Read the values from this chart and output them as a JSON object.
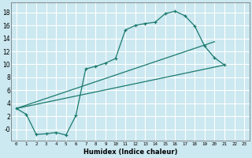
{
  "xlabel": "Humidex (Indice chaleur)",
  "bg_color": "#cce8f0",
  "grid_color": "#ffffff",
  "line_color": "#1a7a6e",
  "xlim": [
    -0.5,
    23.5
  ],
  "ylim": [
    -1.8,
    19.5
  ],
  "xticks": [
    0,
    1,
    2,
    3,
    4,
    5,
    6,
    7,
    8,
    9,
    10,
    11,
    12,
    13,
    14,
    15,
    16,
    17,
    18,
    19,
    20,
    21,
    22,
    23
  ],
  "yticks": [
    0,
    2,
    4,
    6,
    8,
    10,
    12,
    14,
    16,
    18
  ],
  "ytick_labels": [
    "-0",
    "2",
    "4",
    "6",
    "8",
    "10",
    "12",
    "14",
    "16",
    "18"
  ],
  "curve1_x": [
    0,
    1,
    2,
    3,
    4,
    5,
    6,
    7,
    8,
    9,
    10,
    11,
    12,
    13,
    14,
    15,
    16,
    17,
    18,
    19,
    20,
    21
  ],
  "curve1_y": [
    3.2,
    2.3,
    -0.8,
    -0.7,
    -0.5,
    -0.9,
    2.1,
    9.3,
    9.7,
    10.2,
    10.9,
    15.3,
    16.0,
    16.3,
    16.5,
    17.8,
    18.2,
    17.5,
    15.9,
    12.8,
    11.0,
    9.9
  ],
  "line2_x": [
    0,
    21
  ],
  "line2_y": [
    3.2,
    9.9
  ],
  "line3_x": [
    0,
    20
  ],
  "line3_y": [
    3.2,
    13.5
  ]
}
